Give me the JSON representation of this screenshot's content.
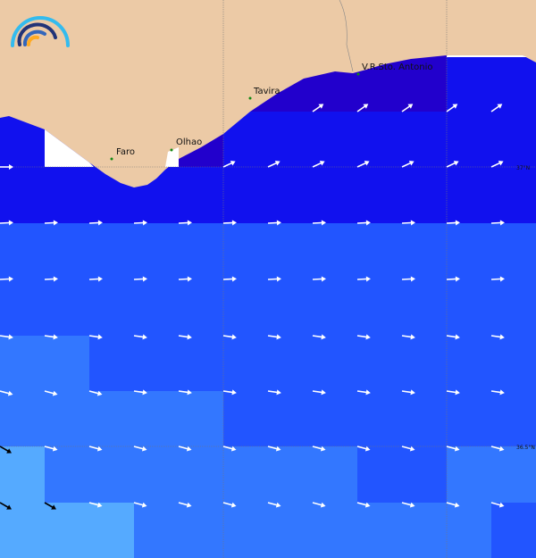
{
  "map": {
    "places": [
      {
        "name": "Faro",
        "lon_lat": "Faro"
      },
      {
        "name": "Olhao"
      },
      {
        "name": "Tavira"
      },
      {
        "name": "V.R.Sto. Antonio"
      }
    ],
    "lat_labels": [
      "37°N",
      "36.5°N"
    ],
    "colors": {
      "land": "#eccaa6",
      "level_1": "#2200cc",
      "level_2": "#1111ee",
      "level_3": "#2255ff",
      "level_4": "#3377ff",
      "level_5": "#55aaff",
      "arrow": "#ffffff",
      "arrow_alt": "#000000",
      "station": "#118811"
    },
    "logo": "wave-arcs-logo"
  }
}
